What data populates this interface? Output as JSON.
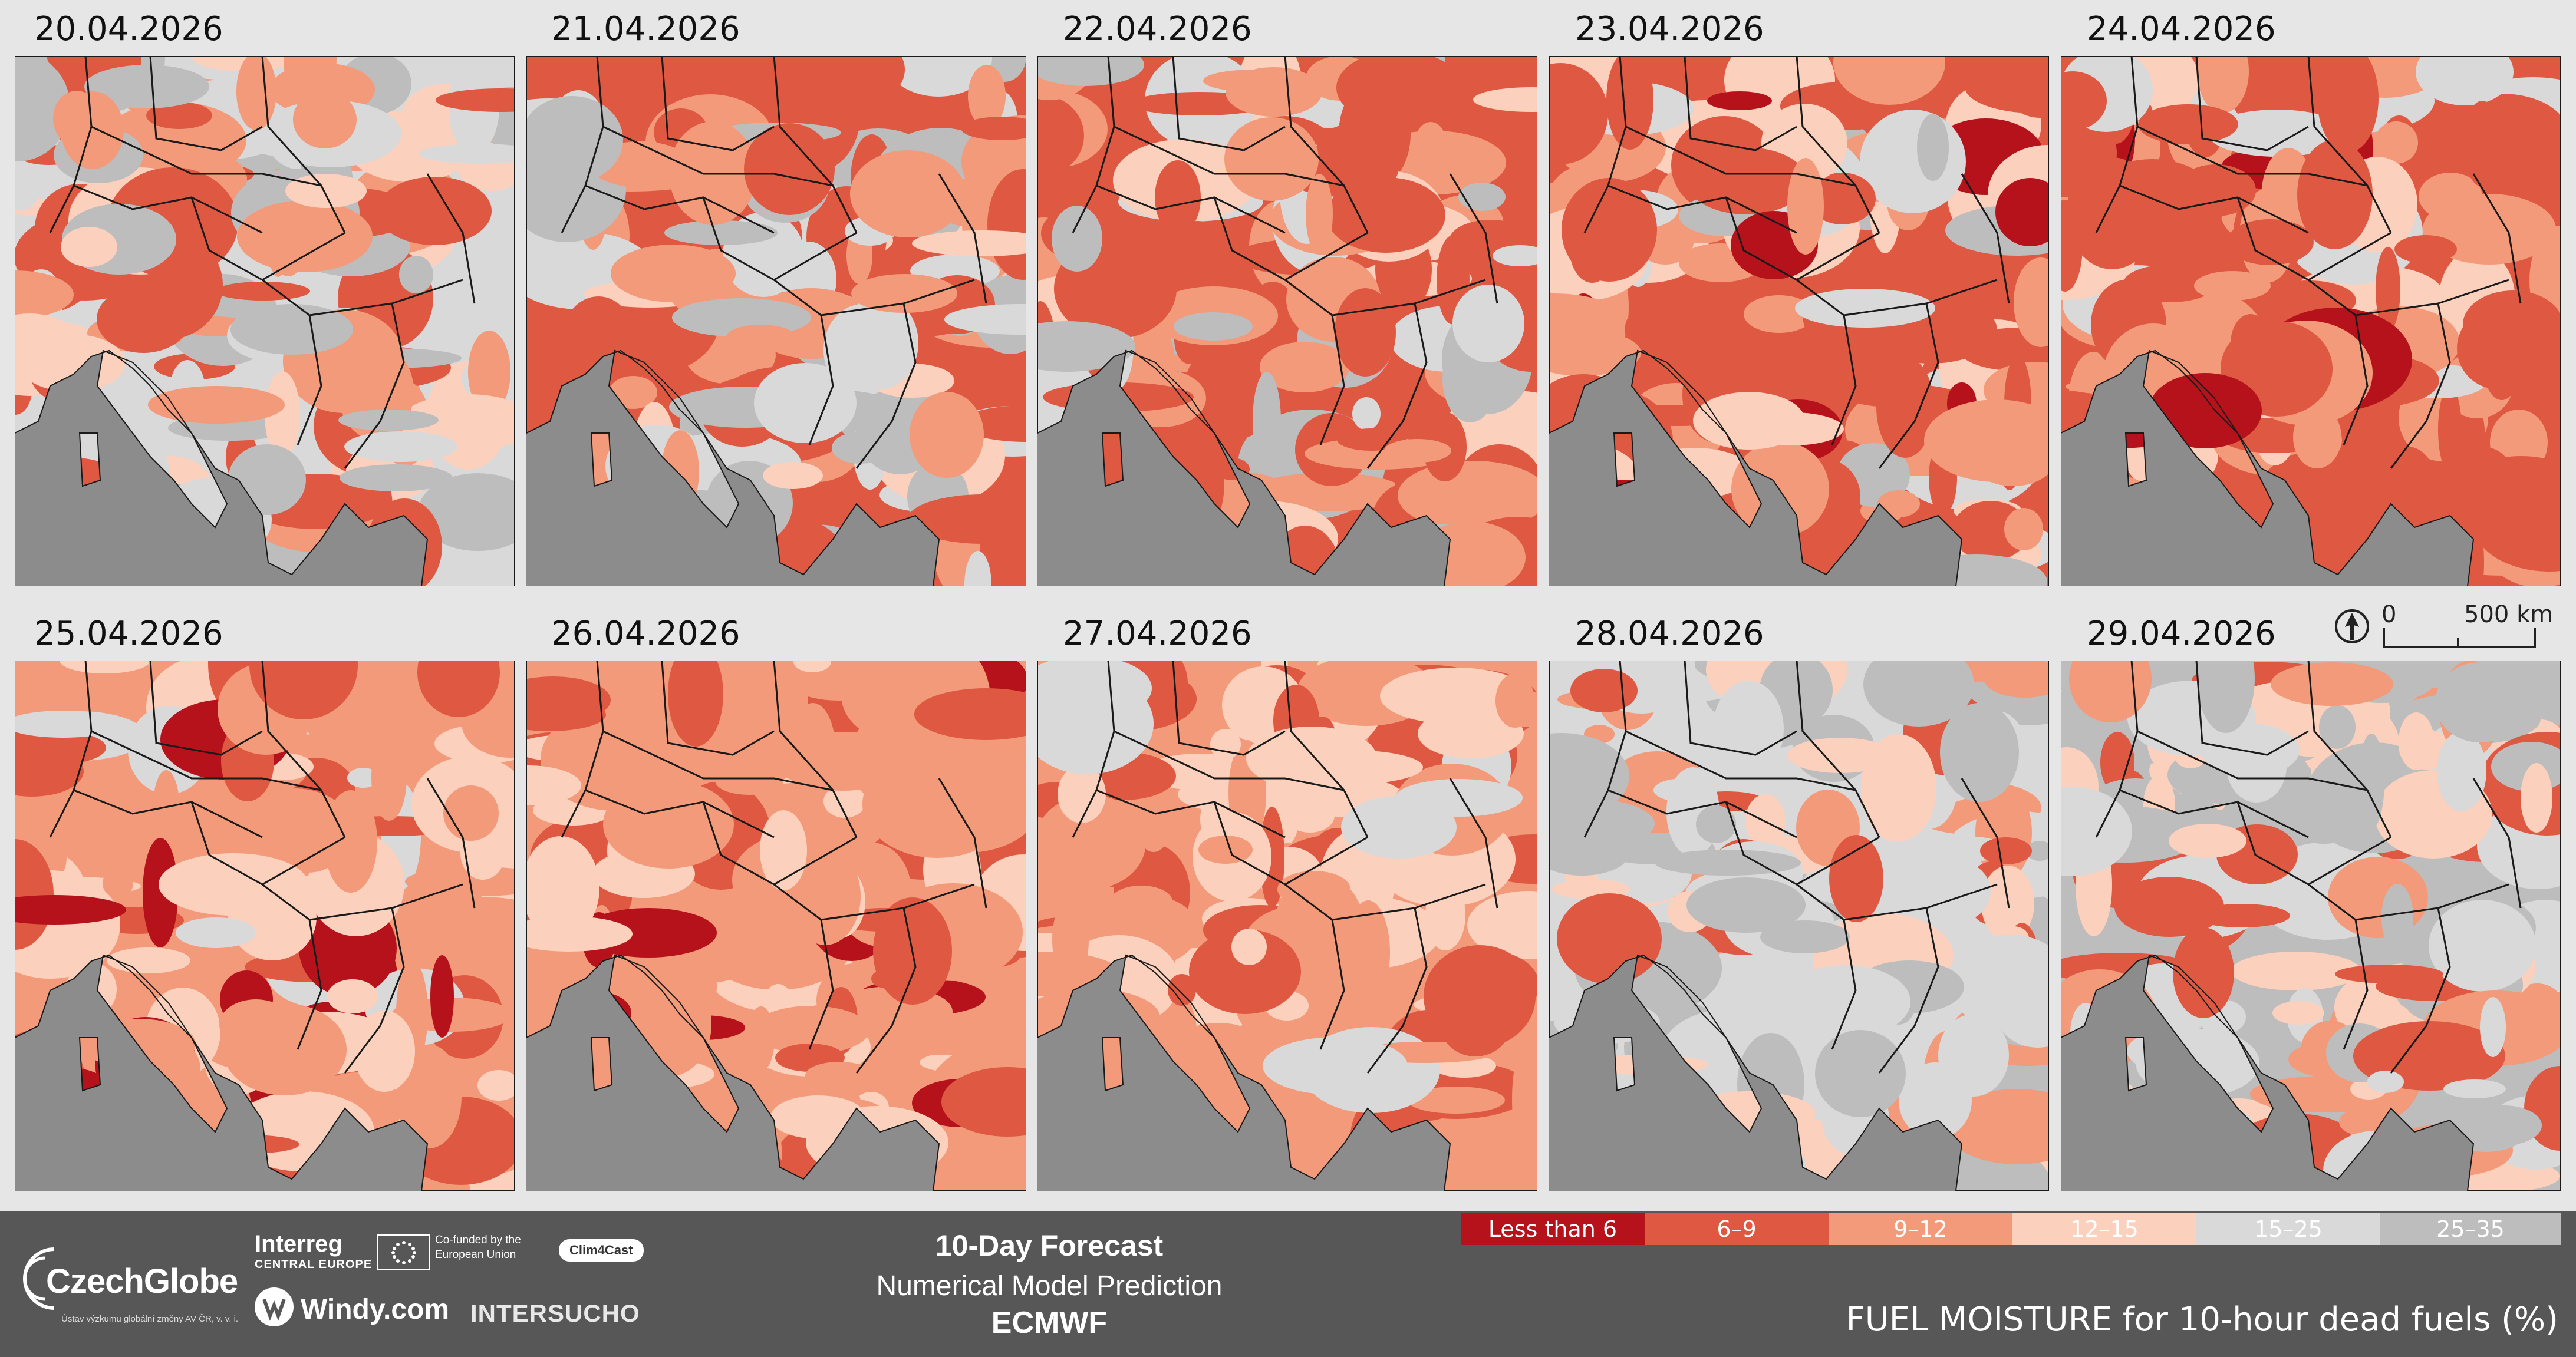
{
  "panels": [
    {
      "date": "20.04.2026"
    },
    {
      "date": "21.04.2026"
    },
    {
      "date": "22.04.2026"
    },
    {
      "date": "23.04.2026"
    },
    {
      "date": "24.04.2026"
    },
    {
      "date": "25.04.2026"
    },
    {
      "date": "26.04.2026"
    },
    {
      "date": "27.04.2026"
    },
    {
      "date": "28.04.2026"
    },
    {
      "date": "29.04.2026"
    }
  ],
  "scale": {
    "zero": "0",
    "distance": "500 km"
  },
  "icons": {
    "north_arrow": "north-arrow-icon",
    "logo": "czechglobe-logo-icon",
    "windy": "windy-logo-icon",
    "eu": "eu-flag-icon"
  },
  "footer": {
    "title": "10-Day Forecast",
    "subtitle": "Numerical Model Prediction",
    "model": "ECMWF",
    "variable": "FUEL MOISTURE for 10-hour dead fuels (%)",
    "logos": {
      "czechglobe": "CzechGlobe",
      "czechglobe_sub": "Ústav výzkumu globální změny AV ČR, v. v. i.",
      "interreg": "Interreg",
      "interreg_sub": "CENTRAL EUROPE",
      "cofunded": "Co-funded by the European Union",
      "clim4cast": "Clim4Cast",
      "windy": "Windy.com",
      "intersucho": "INTERSUCHO"
    }
  },
  "legend": [
    {
      "label": "Less than 6",
      "color": "#b5121b"
    },
    {
      "label": "6–9",
      "color": "#de5842"
    },
    {
      "label": "9–12",
      "color": "#f29a7a"
    },
    {
      "label": "12–15",
      "color": "#fbd1bd"
    },
    {
      "label": "15–25",
      "color": "#d9d9d9"
    },
    {
      "label": "25–35",
      "color": "#bdbdbd"
    }
  ],
  "colors": {
    "sea": "#8c8c8c",
    "border": "#1a1a1a"
  }
}
